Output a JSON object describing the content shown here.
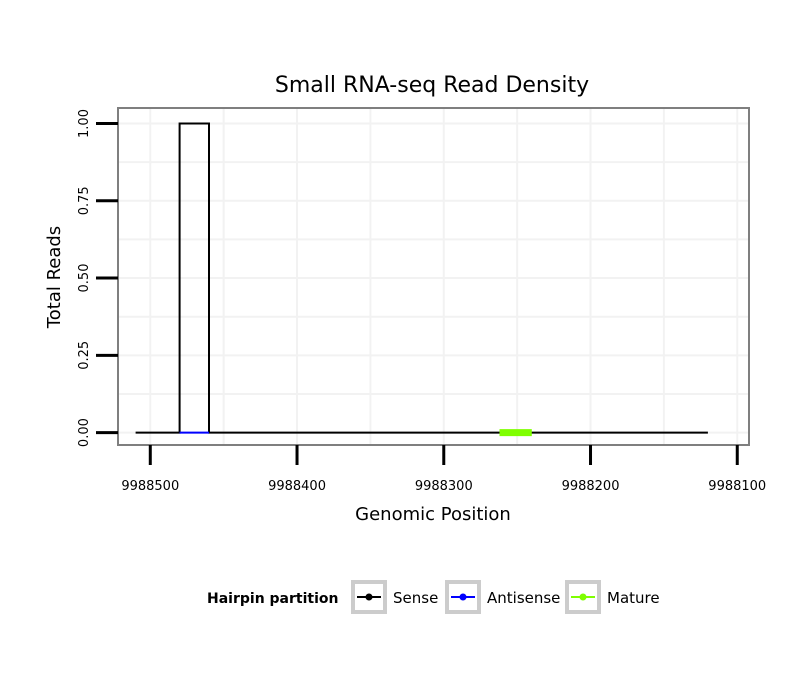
{
  "chart_data": {
    "type": "line",
    "title": "Small RNA-seq Read Density",
    "xlabel": "Genomic Position",
    "ylabel": "Total Reads",
    "xlim": [
      9988522,
      9988092
    ],
    "ylim": [
      -0.04,
      1.05
    ],
    "x_reversed": true,
    "grid": true,
    "x_ticks": [
      9988500,
      9988400,
      9988300,
      9988200,
      9988100
    ],
    "x_tick_labels": [
      "9988500",
      "9988400",
      "9988300",
      "9988200",
      "9988100"
    ],
    "y_ticks": [
      0.0,
      0.25,
      0.5,
      0.75,
      1.0
    ],
    "y_tick_labels": [
      "0.00",
      "0.25",
      "0.50",
      "0.75",
      "1.00"
    ],
    "series": [
      {
        "name": "Sense",
        "color": "#000000",
        "x": [
          9988510,
          9988480,
          9988480,
          9988460,
          9988460,
          9988120
        ],
        "y": [
          0,
          0,
          1,
          1,
          0,
          0
        ]
      },
      {
        "name": "Antisense",
        "color": "#0000ff",
        "x": [
          9988480,
          9988460
        ],
        "y": [
          0,
          0
        ]
      },
      {
        "name": "Mature",
        "color": "#7fff00",
        "x": [
          9988262,
          9988240
        ],
        "y": [
          0,
          0
        ]
      }
    ],
    "legend": {
      "title": "Hairpin partition",
      "position": "bottom",
      "entries": [
        "Sense",
        "Antisense",
        "Mature"
      ]
    }
  }
}
